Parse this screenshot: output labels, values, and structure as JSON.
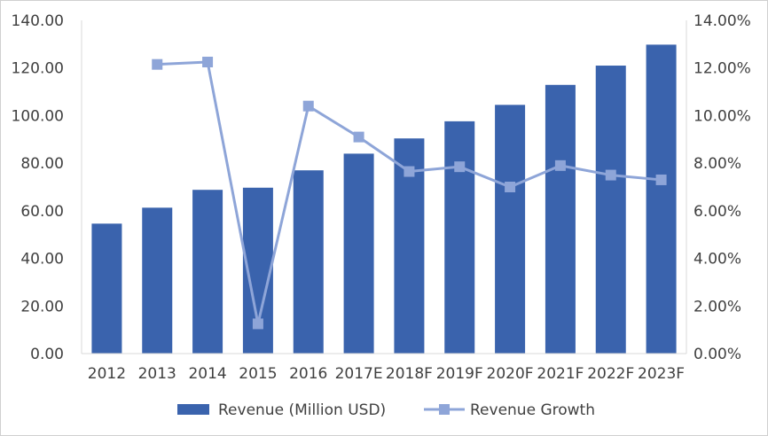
{
  "chart_data": {
    "type": "bar",
    "categories": [
      "2012",
      "2013",
      "2014",
      "2015",
      "2016",
      "2017E",
      "2018F",
      "2019F",
      "2020F",
      "2021F",
      "2022F",
      "2023F"
    ],
    "series": [
      {
        "name": "Revenue (Million USD)",
        "type": "bar",
        "axis": "left",
        "color": "#3a63ad",
        "values": [
          54.6,
          61.3,
          68.8,
          69.7,
          77.0,
          84.0,
          90.4,
          97.6,
          104.5,
          112.9,
          121.0,
          129.8
        ]
      },
      {
        "name": "Revenue Growth",
        "type": "line",
        "axis": "right",
        "color": "#8ea5d8",
        "marker": "square",
        "values": [
          null,
          0.1215,
          0.1225,
          0.0125,
          0.104,
          0.091,
          0.0765,
          0.0785,
          0.07,
          0.079,
          0.075,
          0.073
        ]
      }
    ],
    "y_left": {
      "range": [
        0,
        140
      ],
      "ticks": [
        "0.00",
        "20.00",
        "40.00",
        "60.00",
        "80.00",
        "100.00",
        "120.00",
        "140.00"
      ]
    },
    "y_right": {
      "range": [
        0,
        0.14
      ],
      "ticks": [
        "0.00%",
        "2.00%",
        "4.00%",
        "6.00%",
        "8.00%",
        "10.00%",
        "12.00%",
        "14.00%"
      ]
    },
    "grid": false,
    "legend": "bottom"
  }
}
